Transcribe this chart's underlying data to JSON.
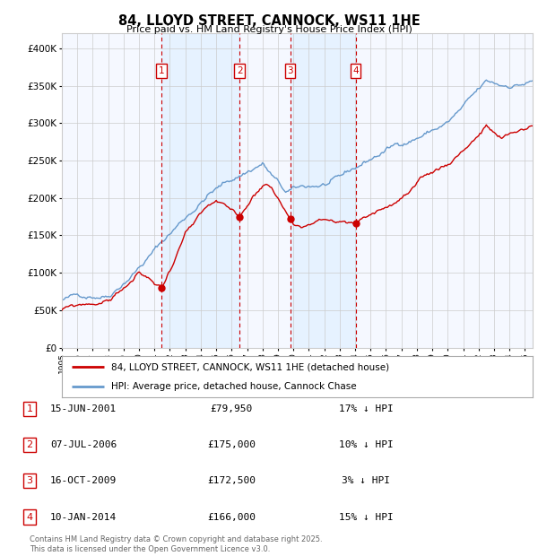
{
  "title": "84, LLOYD STREET, CANNOCK, WS11 1HE",
  "subtitle": "Price paid vs. HM Land Registry's House Price Index (HPI)",
  "ylabel_ticks": [
    "£0",
    "£50K",
    "£100K",
    "£150K",
    "£200K",
    "£250K",
    "£300K",
    "£350K",
    "£400K"
  ],
  "ylim": [
    0,
    420000
  ],
  "xlim_start": 1995.0,
  "xlim_end": 2025.5,
  "sale_dates": [
    2001.46,
    2006.52,
    2009.79,
    2014.03
  ],
  "sale_prices": [
    79950,
    175000,
    172500,
    166000
  ],
  "sale_labels": [
    "1",
    "2",
    "3",
    "4"
  ],
  "sale_date_strs": [
    "15-JUN-2001",
    "07-JUL-2006",
    "16-OCT-2009",
    "10-JAN-2014"
  ],
  "sale_price_strs": [
    "£79,950",
    "£175,000",
    "£172,500",
    "£166,000"
  ],
  "sale_hpi_strs": [
    "17% ↓ HPI",
    "10% ↓ HPI",
    "3% ↓ HPI",
    "15% ↓ HPI"
  ],
  "vline_color": "#cc0000",
  "shade_color": "#ddeeff",
  "hpi_line_color": "#6699cc",
  "price_line_color": "#cc0000",
  "legend_line1": "84, LLOYD STREET, CANNOCK, WS11 1HE (detached house)",
  "legend_line2": "HPI: Average price, detached house, Cannock Chase",
  "footer": "Contains HM Land Registry data © Crown copyright and database right 2025.\nThis data is licensed under the Open Government Licence v3.0.",
  "bg_color": "#ffffff",
  "grid_color": "#cccccc",
  "plot_bg_color": "#f5f8ff"
}
